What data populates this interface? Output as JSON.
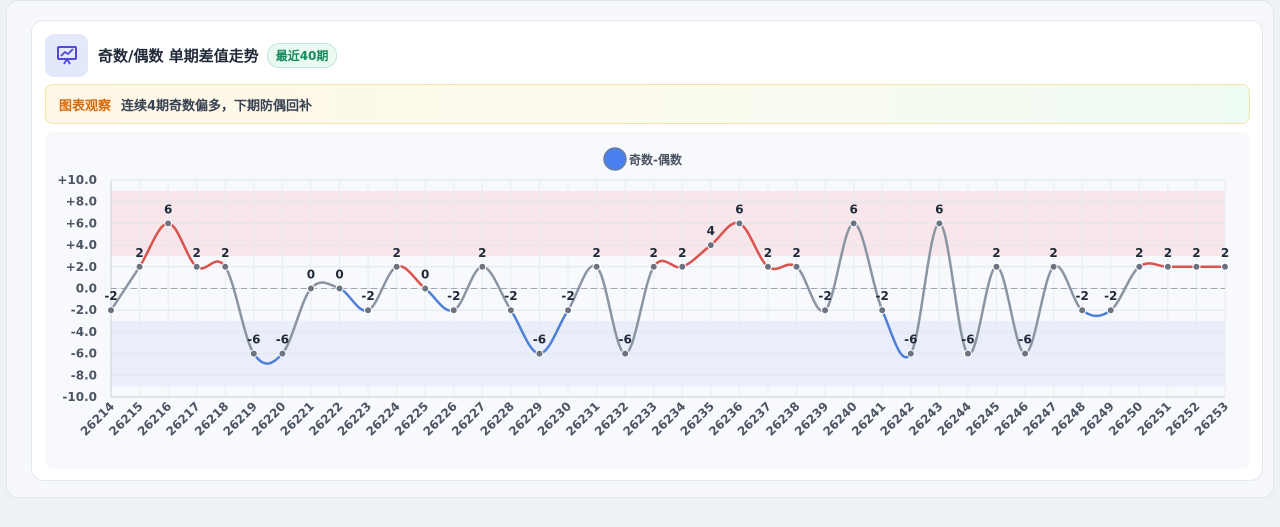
{
  "header": {
    "title": "奇数/偶数 单期差值走势",
    "badge": "最近40期"
  },
  "insight": {
    "tag": "图表观察",
    "text": "连续4期奇数偏多，下期防偶回补"
  },
  "colors": {
    "positive": "#d9534f",
    "negative": "#4f7fd8",
    "neutral": "#8a95a3",
    "legend": "#4a7ff0",
    "band_high": "#f8e3e6",
    "band_low": "#e6ecf9"
  },
  "chart_data": {
    "type": "line",
    "legend": "奇数-偶数",
    "categories": [
      "26214",
      "26215",
      "26216",
      "26217",
      "26218",
      "26219",
      "26220",
      "26221",
      "26222",
      "26223",
      "26224",
      "26225",
      "26226",
      "26227",
      "26228",
      "26229",
      "26230",
      "26231",
      "26232",
      "26233",
      "26234",
      "26235",
      "26236",
      "26237",
      "26238",
      "26239",
      "26240",
      "26241",
      "26242",
      "26243",
      "26244",
      "26245",
      "26246",
      "26247",
      "26248",
      "26249",
      "26250",
      "26251",
      "26252",
      "26253"
    ],
    "values": [
      -2,
      2,
      6,
      2,
      2,
      -6,
      -6,
      0,
      0,
      -2,
      2,
      0,
      -2,
      2,
      -2,
      -6,
      -2,
      2,
      -6,
      2,
      2,
      4,
      6,
      2,
      2,
      -2,
      6,
      -2,
      -6,
      6,
      -6,
      2,
      -6,
      2,
      -2,
      -2,
      2,
      2,
      2,
      2
    ],
    "y_ticks": [
      "+10.0",
      "+8.0",
      "+6.0",
      "+4.0",
      "+2.0",
      "0.0",
      "-2.0",
      "-4.0",
      "-6.0",
      "-8.0",
      "-10.0"
    ],
    "ylim": [
      -10,
      10
    ],
    "bands": [
      {
        "from": 3,
        "to": 9,
        "tone": "high"
      },
      {
        "from": -9,
        "to": -3,
        "tone": "low"
      }
    ],
    "zero_line": true,
    "grid": true,
    "legend_position": "top-center"
  }
}
